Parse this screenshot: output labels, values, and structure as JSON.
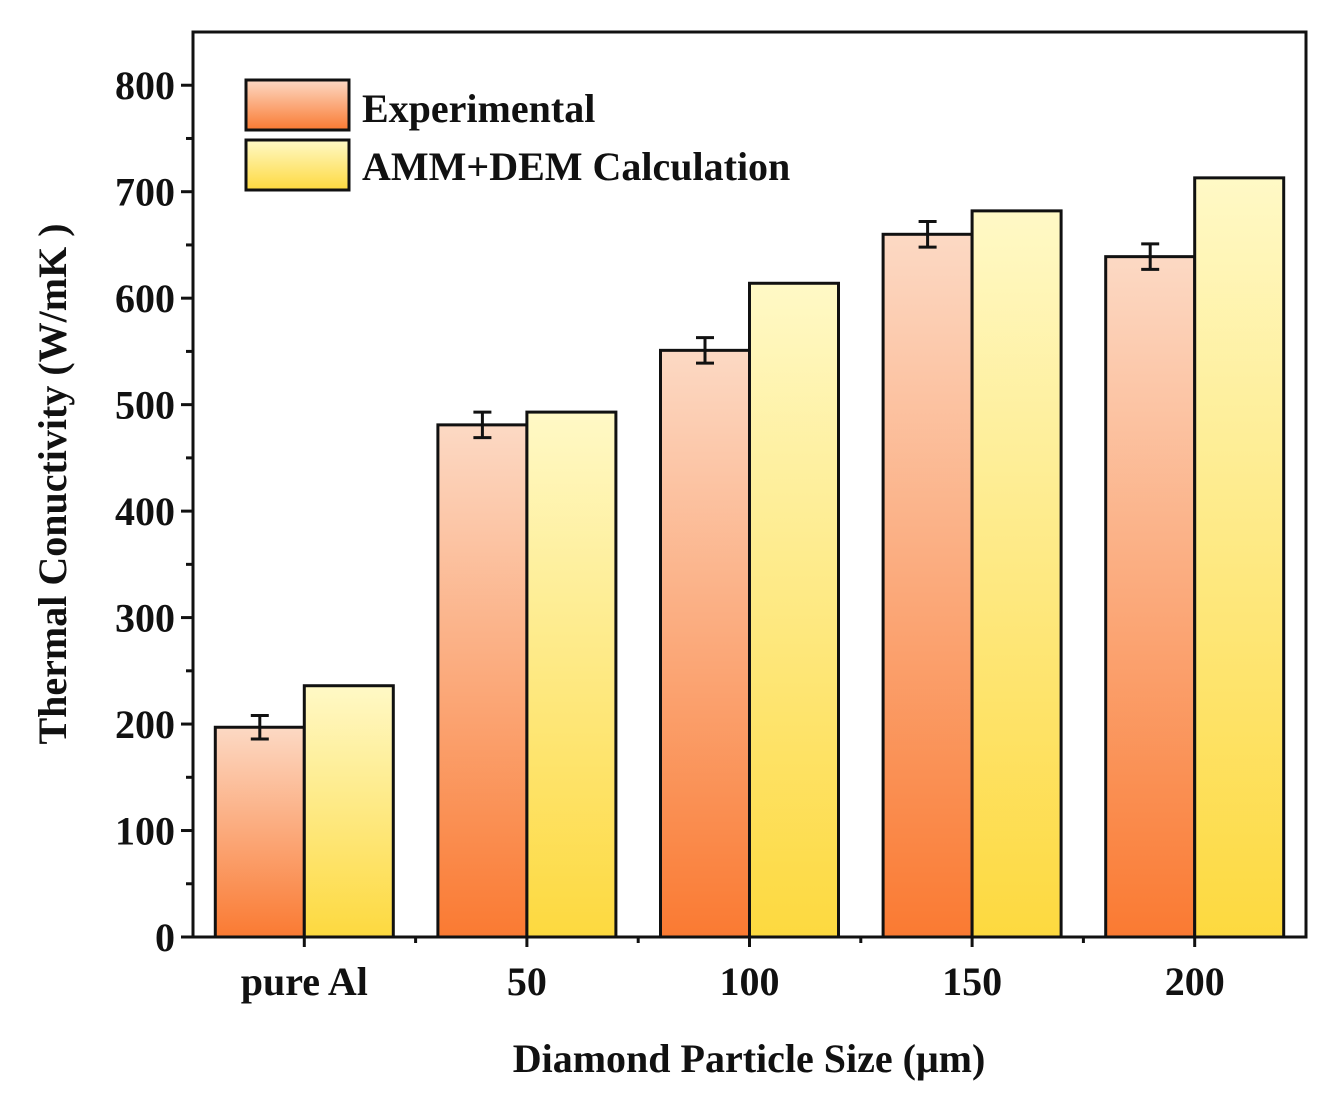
{
  "chart_data": {
    "type": "bar",
    "title": "",
    "xlabel": "Diamond Particle Size (μm)",
    "ylabel": "Thermal Conuctivity (W/mK )",
    "ylim": [
      0,
      850
    ],
    "yticks": [
      "0",
      "100",
      "200",
      "300",
      "400",
      "500",
      "600",
      "700",
      "800"
    ],
    "ytick_values": [
      0,
      100,
      200,
      300,
      400,
      500,
      600,
      700,
      800
    ],
    "categories": [
      "pure Al",
      "50",
      "100",
      "150",
      "200"
    ],
    "series": [
      {
        "name": "Experimental",
        "values": [
          197,
          481,
          551,
          660,
          639
        ],
        "errors": [
          11,
          12,
          12,
          12,
          12
        ],
        "color_top": "#fcd9c4",
        "color_bottom": "#fa7a32"
      },
      {
        "name": "AMM+DEM Calculation",
        "values": [
          236,
          493,
          614,
          682,
          713
        ],
        "color_top": "#fff9c6",
        "color_bottom": "#fdd93f"
      }
    ],
    "legend_position": "top-left",
    "grid": false
  }
}
